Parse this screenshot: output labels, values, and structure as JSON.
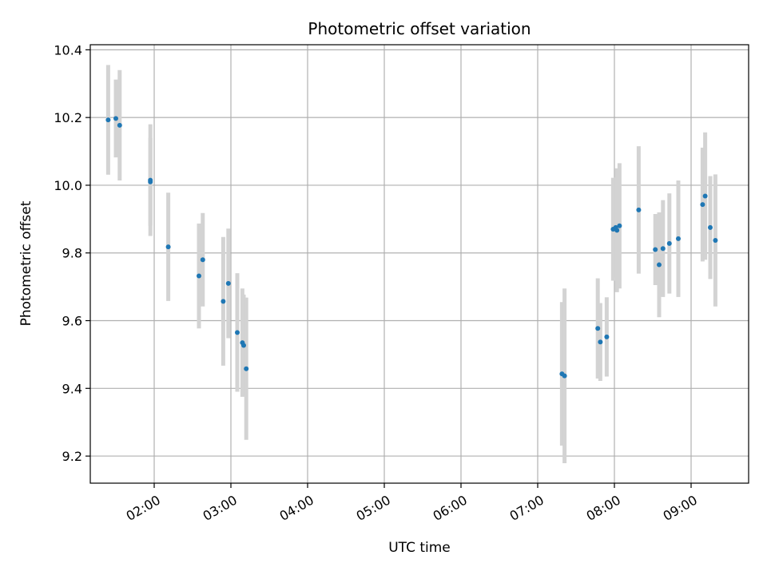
{
  "chart_data": {
    "type": "scatter",
    "title": "Photometric offset variation",
    "xlabel": "UTC time",
    "ylabel": "Photometric offset",
    "grid": true,
    "xlim": [
      "01:10",
      "09:45"
    ],
    "ylim": [
      9.12,
      10.415
    ],
    "x_ticks": [
      "02:00",
      "03:00",
      "04:00",
      "05:00",
      "06:00",
      "07:00",
      "08:00",
      "09:00"
    ],
    "y_ticks": [
      9.2,
      9.4,
      9.6,
      9.8,
      10.0,
      10.2,
      10.4
    ],
    "point_color": "#1f77b4",
    "errorbar_color": "#d3d3d3",
    "points": [
      {
        "time": "01:24",
        "y": 10.193,
        "err": 0.162
      },
      {
        "time": "01:30",
        "y": 10.197,
        "err": 0.115
      },
      {
        "time": "01:33",
        "y": 10.177,
        "err": 0.163
      },
      {
        "time": "01:57",
        "y": 10.015,
        "err": 0.165
      },
      {
        "time": "01:57",
        "y": 10.01,
        "err": 0.13
      },
      {
        "time": "02:11",
        "y": 9.818,
        "err": 0.16
      },
      {
        "time": "02:35",
        "y": 9.732,
        "err": 0.155
      },
      {
        "time": "02:38",
        "y": 9.78,
        "err": 0.138
      },
      {
        "time": "02:54",
        "y": 9.657,
        "err": 0.19
      },
      {
        "time": "02:58",
        "y": 9.71,
        "err": 0.162
      },
      {
        "time": "03:05",
        "y": 9.565,
        "err": 0.175
      },
      {
        "time": "03:09",
        "y": 9.535,
        "err": 0.16
      },
      {
        "time": "03:10",
        "y": 9.527,
        "err": 0.15
      },
      {
        "time": "03:12",
        "y": 9.458,
        "err": 0.21
      },
      {
        "time": "07:19",
        "y": 9.443,
        "err": 0.212
      },
      {
        "time": "07:21",
        "y": 9.437,
        "err": 0.258
      },
      {
        "time": "07:47",
        "y": 9.577,
        "err": 0.148
      },
      {
        "time": "07:49",
        "y": 9.537,
        "err": 0.115
      },
      {
        "time": "07:54",
        "y": 9.552,
        "err": 0.117
      },
      {
        "time": "07:59",
        "y": 9.87,
        "err": 0.152
      },
      {
        "time": "08:01",
        "y": 9.875,
        "err": 0.148
      },
      {
        "time": "08:02",
        "y": 9.867,
        "err": 0.183
      },
      {
        "time": "08:04",
        "y": 9.88,
        "err": 0.185
      },
      {
        "time": "08:19",
        "y": 9.927,
        "err": 0.188
      },
      {
        "time": "08:32",
        "y": 9.81,
        "err": 0.105
      },
      {
        "time": "08:35",
        "y": 9.765,
        "err": 0.155
      },
      {
        "time": "08:38",
        "y": 9.813,
        "err": 0.143
      },
      {
        "time": "08:43",
        "y": 9.828,
        "err": 0.148
      },
      {
        "time": "08:50",
        "y": 9.842,
        "err": 0.172
      },
      {
        "time": "09:09",
        "y": 9.943,
        "err": 0.168
      },
      {
        "time": "09:11",
        "y": 9.968,
        "err": 0.188
      },
      {
        "time": "09:15",
        "y": 9.875,
        "err": 0.152
      },
      {
        "time": "09:19",
        "y": 9.837,
        "err": 0.195
      }
    ]
  }
}
